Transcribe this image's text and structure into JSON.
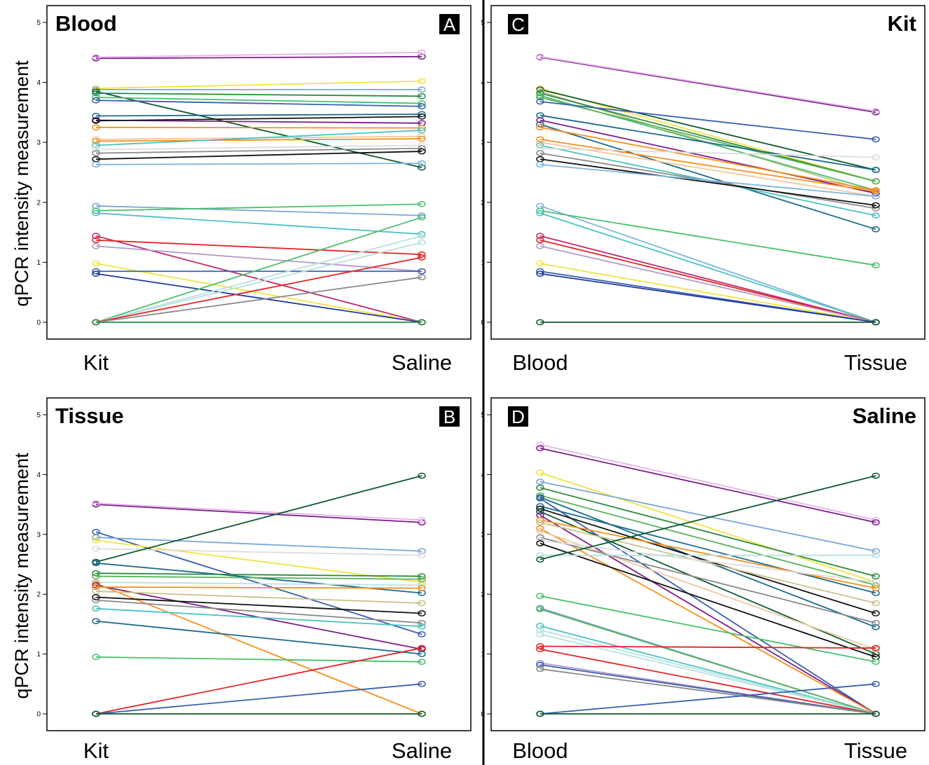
{
  "figure": {
    "ylabel_top": "qPCR intensity measurement",
    "ylabel_bottom": "qPCR intensity measurement"
  },
  "colors": {
    "palette": [
      "#7b1f8a",
      "#e3b4e6",
      "#f0e442",
      "#2a8a3e",
      "#49c06b",
      "#3a5fb0",
      "#26a09a",
      "#4bc2c2",
      "#111111",
      "#f5901e",
      "#f2c8a0",
      "#7aa6d6",
      "#8a8a8a",
      "#dcdcdc",
      "#b9e0e0",
      "#0e5a30",
      "#1c6a8a",
      "#e32424",
      "#c0296e",
      "#b49ac8",
      "#c8c08a",
      "#1e3a9a",
      "#7ab6e0",
      "#5ab35a"
    ]
  },
  "chart_data": [
    {
      "id": "A",
      "type": "line",
      "title": "Blood",
      "letter": "A",
      "title_align": "left",
      "letter_align": "right",
      "categories": [
        "Kit",
        "Saline"
      ],
      "ylim": [
        0,
        5
      ],
      "yticks": [
        "0",
        "1",
        "2",
        "3",
        "4",
        "5"
      ],
      "grid": false,
      "series": [
        {
          "values": [
            4.4,
            4.43
          ],
          "color": "#7b1f8a"
        },
        {
          "values": [
            4.42,
            4.5
          ],
          "color": "#e3b4e6"
        },
        {
          "values": [
            3.9,
            4.02
          ],
          "color": "#f0e442"
        },
        {
          "values": [
            3.88,
            3.88
          ],
          "color": "#7aa6d6"
        },
        {
          "values": [
            3.85,
            2.58
          ],
          "color": "#0e5a30"
        },
        {
          "values": [
            3.82,
            3.77
          ],
          "color": "#2a8a3e"
        },
        {
          "values": [
            3.75,
            3.65
          ],
          "color": "#49c06b"
        },
        {
          "values": [
            3.7,
            3.6
          ],
          "color": "#3a5fb0"
        },
        {
          "values": [
            3.44,
            3.47
          ],
          "color": "#1c6a8a"
        },
        {
          "values": [
            3.37,
            3.32
          ],
          "color": "#7b1f8a"
        },
        {
          "values": [
            3.36,
            3.43
          ],
          "color": "#111111"
        },
        {
          "values": [
            3.25,
            3.24
          ],
          "color": "#f5901e"
        },
        {
          "values": [
            3.05,
            3.1
          ],
          "color": "#f2c8a0"
        },
        {
          "values": [
            3.02,
            3.06
          ],
          "color": "#f5901e"
        },
        {
          "values": [
            2.95,
            3.2
          ],
          "color": "#4bc2c2"
        },
        {
          "values": [
            2.88,
            2.95
          ],
          "color": "#dcdcdc"
        },
        {
          "values": [
            2.82,
            2.9
          ],
          "color": "#8a8a8a"
        },
        {
          "values": [
            2.72,
            2.85
          ],
          "color": "#111111"
        },
        {
          "values": [
            2.63,
            2.65
          ],
          "color": "#7ab6e0"
        },
        {
          "values": [
            1.94,
            1.78
          ],
          "color": "#7aa6d6"
        },
        {
          "values": [
            1.86,
            1.97
          ],
          "color": "#49c06b"
        },
        {
          "values": [
            1.82,
            1.47
          ],
          "color": "#4bc2c2"
        },
        {
          "values": [
            1.44,
            0.0
          ],
          "color": "#c0296e"
        },
        {
          "values": [
            1.37,
            1.13
          ],
          "color": "#e32424"
        },
        {
          "values": [
            1.27,
            0.85
          ],
          "color": "#b49ac8"
        },
        {
          "values": [
            0.98,
            0.0
          ],
          "color": "#f0e442"
        },
        {
          "values": [
            0.85,
            0.85
          ],
          "color": "#3a5fb0"
        },
        {
          "values": [
            0.81,
            0.0
          ],
          "color": "#1e3a9a"
        },
        {
          "values": [
            0.0,
            1.75
          ],
          "color": "#49c06b"
        },
        {
          "values": [
            0.0,
            1.44
          ],
          "color": "#b9e0e0"
        },
        {
          "values": [
            0.0,
            1.33
          ],
          "color": "#b9e0e0"
        },
        {
          "values": [
            0.0,
            1.08
          ],
          "color": "#e32424"
        },
        {
          "values": [
            0.0,
            0.75
          ],
          "color": "#8a8a8a"
        },
        {
          "values": [
            0.0,
            0.0
          ],
          "color": "#2a8a3e"
        }
      ]
    },
    {
      "id": "C",
      "type": "line",
      "title": "Kit",
      "letter": "C",
      "title_align": "right",
      "letter_align": "left",
      "categories": [
        "Blood",
        "Tissue"
      ],
      "ylim": [
        0,
        5
      ],
      "yticks": [
        "0",
        "1",
        "2",
        "3",
        "4",
        "5"
      ],
      "grid": false,
      "series": [
        {
          "values": [
            4.42,
            3.5
          ],
          "color": "#7b1f8a"
        },
        {
          "values": [
            4.43,
            3.52
          ],
          "color": "#e3b4e6"
        },
        {
          "values": [
            3.9,
            2.35
          ],
          "color": "#f0e442"
        },
        {
          "values": [
            3.88,
            2.54
          ],
          "color": "#0e5a30"
        },
        {
          "values": [
            3.85,
            2.15
          ],
          "color": "#c8c08a"
        },
        {
          "values": [
            3.82,
            2.35
          ],
          "color": "#2a8a3e"
        },
        {
          "values": [
            3.78,
            2.2
          ],
          "color": "#49c06b"
        },
        {
          "values": [
            3.75,
            2.35
          ],
          "color": "#5ab35a"
        },
        {
          "values": [
            3.68,
            3.05
          ],
          "color": "#3a5fb0"
        },
        {
          "values": [
            3.45,
            2.54
          ],
          "color": "#1c6a8a"
        },
        {
          "values": [
            3.37,
            2.15
          ],
          "color": "#7b1f8a"
        },
        {
          "values": [
            3.3,
            1.55
          ],
          "color": "#1c6a8a"
        },
        {
          "values": [
            3.25,
            2.2
          ],
          "color": "#f5901e"
        },
        {
          "values": [
            3.05,
            2.18
          ],
          "color": "#f5901e"
        },
        {
          "values": [
            3.0,
            2.1
          ],
          "color": "#f2c8a0"
        },
        {
          "values": [
            2.95,
            1.78
          ],
          "color": "#4bc2c2"
        },
        {
          "values": [
            2.9,
            2.75
          ],
          "color": "#dcdcdc"
        },
        {
          "values": [
            2.82,
            1.9
          ],
          "color": "#8a8a8a"
        },
        {
          "values": [
            2.72,
            1.95
          ],
          "color": "#111111"
        },
        {
          "values": [
            2.63,
            2.1
          ],
          "color": "#7ab6e0"
        },
        {
          "values": [
            1.94,
            0.0
          ],
          "color": "#7ab6e0"
        },
        {
          "values": [
            1.86,
            0.95
          ],
          "color": "#49c06b"
        },
        {
          "values": [
            1.82,
            0.0
          ],
          "color": "#4bc2c2"
        },
        {
          "values": [
            1.44,
            0.0
          ],
          "color": "#c0296e"
        },
        {
          "values": [
            1.37,
            0.0
          ],
          "color": "#e32424"
        },
        {
          "values": [
            1.27,
            0.0
          ],
          "color": "#b49ac8"
        },
        {
          "values": [
            0.98,
            0.0
          ],
          "color": "#f0e442"
        },
        {
          "values": [
            0.85,
            0.0
          ],
          "color": "#3a5fb0"
        },
        {
          "values": [
            0.81,
            0.0
          ],
          "color": "#1e3a9a"
        },
        {
          "values": [
            0.0,
            0.0
          ],
          "color": "#0e5a30"
        }
      ]
    },
    {
      "id": "B",
      "type": "line",
      "title": "Tissue",
      "letter": "B",
      "title_align": "left",
      "letter_align": "right",
      "categories": [
        "Kit",
        "Saline"
      ],
      "ylim": [
        0,
        5
      ],
      "yticks": [
        "0",
        "1",
        "2",
        "3",
        "4",
        "5"
      ],
      "grid": false,
      "series": [
        {
          "values": [
            3.5,
            3.2
          ],
          "color": "#7b1f8a"
        },
        {
          "values": [
            3.52,
            3.24
          ],
          "color": "#e3b4e6"
        },
        {
          "values": [
            3.04,
            1.33
          ],
          "color": "#3a5fb0"
        },
        {
          "values": [
            2.95,
            2.72
          ],
          "color": "#7aa6d6"
        },
        {
          "values": [
            2.9,
            2.2
          ],
          "color": "#f0e442"
        },
        {
          "values": [
            2.76,
            2.65
          ],
          "color": "#dcdcdc"
        },
        {
          "values": [
            2.54,
            3.98
          ],
          "color": "#0e5a30"
        },
        {
          "values": [
            2.52,
            2.02
          ],
          "color": "#1c6a8a"
        },
        {
          "values": [
            2.35,
            2.3
          ],
          "color": "#2a8a3e"
        },
        {
          "values": [
            2.3,
            2.25
          ],
          "color": "#5ab35a"
        },
        {
          "values": [
            2.2,
            2.15
          ],
          "color": "#b9e0e0"
        },
        {
          "values": [
            2.18,
            0.0
          ],
          "color": "#f5901e"
        },
        {
          "values": [
            2.15,
            1.08
          ],
          "color": "#7b1f8a"
        },
        {
          "values": [
            2.12,
            2.1
          ],
          "color": "#f5901e"
        },
        {
          "values": [
            2.05,
            1.85
          ],
          "color": "#c8c08a"
        },
        {
          "values": [
            1.95,
            1.68
          ],
          "color": "#111111"
        },
        {
          "values": [
            1.9,
            1.52
          ],
          "color": "#8a8a8a"
        },
        {
          "values": [
            1.76,
            1.46
          ],
          "color": "#4bc2c2"
        },
        {
          "values": [
            1.55,
            1.0
          ],
          "color": "#1c6a8a"
        },
        {
          "values": [
            0.95,
            0.87
          ],
          "color": "#49c06b"
        },
        {
          "values": [
            0.0,
            1.1
          ],
          "color": "#e32424"
        },
        {
          "values": [
            0.0,
            0.5
          ],
          "color": "#3a5fb0"
        },
        {
          "values": [
            0.0,
            0.0
          ],
          "color": "#0e5a30"
        }
      ]
    },
    {
      "id": "D",
      "type": "line",
      "title": "Saline",
      "letter": "D",
      "title_align": "right",
      "letter_align": "left",
      "categories": [
        "Blood",
        "Tissue"
      ],
      "ylim": [
        0,
        5
      ],
      "yticks": [
        "0",
        "1",
        "2",
        "3",
        "4",
        "5"
      ],
      "grid": false,
      "series": [
        {
          "values": [
            4.5,
            3.24
          ],
          "color": "#e3b4e6"
        },
        {
          "values": [
            4.44,
            3.2
          ],
          "color": "#7b1f8a"
        },
        {
          "values": [
            4.03,
            2.2
          ],
          "color": "#f0e442"
        },
        {
          "values": [
            3.88,
            2.72
          ],
          "color": "#7aa6d6"
        },
        {
          "values": [
            3.78,
            2.3
          ],
          "color": "#2a8a3e"
        },
        {
          "values": [
            3.65,
            2.15
          ],
          "color": "#5ab35a"
        },
        {
          "values": [
            3.62,
            1.45
          ],
          "color": "#1c6a8a"
        },
        {
          "values": [
            3.6,
            0.0
          ],
          "color": "#3a5fb0"
        },
        {
          "values": [
            3.47,
            2.02
          ],
          "color": "#1c6a8a"
        },
        {
          "values": [
            3.43,
            1.68
          ],
          "color": "#111111"
        },
        {
          "values": [
            3.38,
            1.0
          ],
          "color": "#0e5a30"
        },
        {
          "values": [
            3.32,
            0.0
          ],
          "color": "#7b1f8a"
        },
        {
          "values": [
            3.24,
            2.1
          ],
          "color": "#f5901e"
        },
        {
          "values": [
            3.2,
            1.85
          ],
          "color": "#c8c08a"
        },
        {
          "values": [
            3.1,
            0.0
          ],
          "color": "#f5901e"
        },
        {
          "values": [
            3.06,
            1.08
          ],
          "color": "#f2c8a0"
        },
        {
          "values": [
            2.95,
            1.52
          ],
          "color": "#8a8a8a"
        },
        {
          "values": [
            2.9,
            2.2
          ],
          "color": "#dcdcdc"
        },
        {
          "values": [
            2.85,
            0.95
          ],
          "color": "#111111"
        },
        {
          "values": [
            2.65,
            2.65
          ],
          "color": "#b9e0e0"
        },
        {
          "values": [
            2.58,
            3.98
          ],
          "color": "#0e5a30"
        },
        {
          "values": [
            1.97,
            0.87
          ],
          "color": "#49c06b"
        },
        {
          "values": [
            1.77,
            0.0
          ],
          "color": "#7aa6d6"
        },
        {
          "values": [
            1.75,
            0.0
          ],
          "color": "#5ab35a"
        },
        {
          "values": [
            1.47,
            0.0
          ],
          "color": "#4bc2c2"
        },
        {
          "values": [
            1.4,
            0.0
          ],
          "color": "#b9e0e0"
        },
        {
          "values": [
            1.33,
            0.0
          ],
          "color": "#b9e0e0"
        },
        {
          "values": [
            1.13,
            1.1
          ],
          "color": "#e32424"
        },
        {
          "values": [
            1.08,
            0.0
          ],
          "color": "#e32424"
        },
        {
          "values": [
            0.85,
            0.0
          ],
          "color": "#b49ac8"
        },
        {
          "values": [
            0.82,
            0.0
          ],
          "color": "#3a5fb0"
        },
        {
          "values": [
            0.75,
            0.0
          ],
          "color": "#8a8a8a"
        },
        {
          "values": [
            0.0,
            0.5
          ],
          "color": "#3a5fb0"
        },
        {
          "values": [
            0.0,
            0.0
          ],
          "color": "#0e5a30"
        }
      ]
    }
  ]
}
